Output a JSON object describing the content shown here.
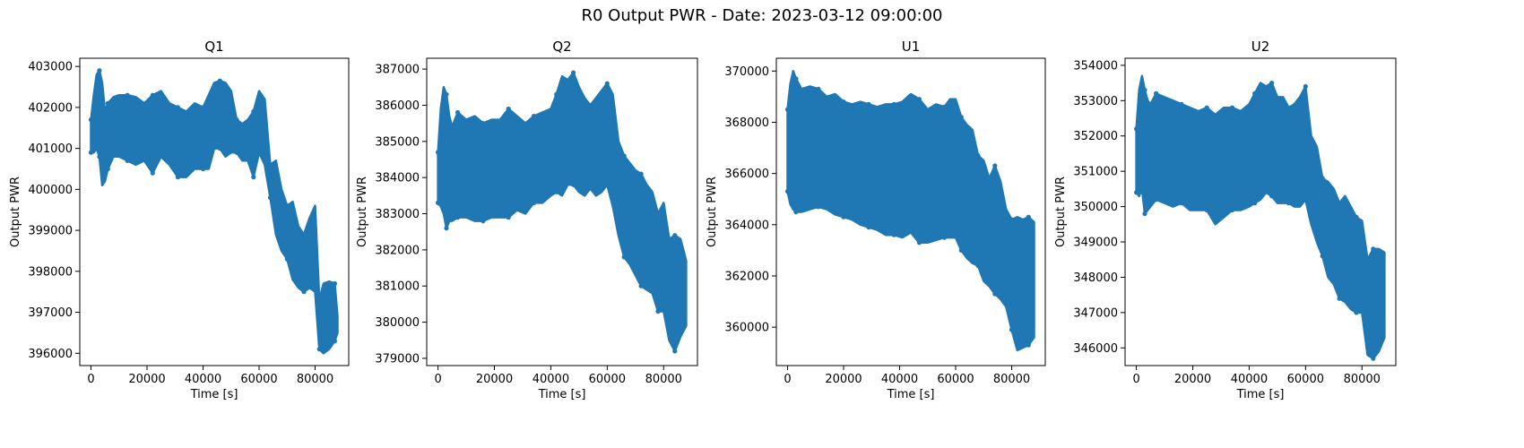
{
  "figure": {
    "suptitle": "R0 Output PWR - Date: 2023-03-12 09:00:00",
    "series_color": "#1f77b4"
  },
  "chart_data": [
    {
      "type": "scatter",
      "title": "Q1",
      "xlabel": "Time [s]",
      "ylabel": "Output PWR",
      "marker": "star",
      "xlim": [
        -4000,
        92000
      ],
      "ylim": [
        395700,
        403200
      ],
      "xticks": [
        0,
        20000,
        40000,
        60000,
        80000
      ],
      "yticks": [
        396000,
        397000,
        398000,
        399000,
        400000,
        401000,
        402000,
        403000
      ],
      "series": [
        {
          "x": [
            0,
            1000,
            2000,
            3000,
            4000,
            5000,
            6000,
            8000,
            10000,
            13000,
            16000,
            19000,
            22000,
            25000,
            28000,
            31000,
            34000,
            37000,
            40000,
            42000,
            44000,
            46000,
            48000,
            50000,
            52000,
            54000,
            56000,
            58000,
            60000,
            62000,
            64000,
            66000,
            68000,
            70000,
            72000,
            74000,
            76000,
            78000,
            80000,
            81500,
            83000,
            85000,
            87000,
            88000
          ],
          "upper": [
            401700,
            402300,
            402800,
            402900,
            402600,
            401900,
            402100,
            402250,
            402300,
            402300,
            402250,
            402100,
            402300,
            402400,
            402100,
            402000,
            401900,
            402100,
            402000,
            402300,
            402600,
            402650,
            402600,
            402400,
            401700,
            401600,
            401700,
            401900,
            402400,
            402200,
            400600,
            400700,
            400000,
            399600,
            399700,
            399100,
            398900,
            399300,
            399600,
            397300,
            397700,
            397750,
            397700,
            396900
          ],
          "lower": [
            400900,
            400900,
            401000,
            400800,
            400100,
            400200,
            400500,
            400800,
            400800,
            400700,
            400600,
            400700,
            400400,
            400800,
            400600,
            400300,
            400300,
            400500,
            400500,
            400500,
            401000,
            401000,
            400800,
            400900,
            400900,
            400700,
            400700,
            400300,
            400900,
            400600,
            399800,
            398900,
            398500,
            398300,
            397800,
            397600,
            397500,
            397600,
            397500,
            396100,
            396000,
            396100,
            396300,
            396500
          ]
        }
      ]
    },
    {
      "type": "scatter",
      "title": "Q2",
      "xlabel": "Time [s]",
      "ylabel": "Output PWR",
      "marker": "star",
      "xlim": [
        -4000,
        92000
      ],
      "ylim": [
        378800,
        387300
      ],
      "xticks": [
        0,
        20000,
        40000,
        60000,
        80000
      ],
      "yticks": [
        379000,
        380000,
        381000,
        382000,
        383000,
        384000,
        385000,
        386000,
        387000
      ],
      "series": [
        {
          "x": [
            0,
            1000,
            2000,
            3000,
            4000,
            5000,
            7000,
            10000,
            13000,
            16000,
            19000,
            22000,
            25000,
            28000,
            31000,
            34000,
            37000,
            40000,
            42000,
            44000,
            46000,
            48000,
            50000,
            52000,
            54000,
            56000,
            58000,
            60000,
            62000,
            64000,
            66000,
            68000,
            70000,
            72000,
            74000,
            76000,
            78000,
            80000,
            82000,
            84000,
            86000,
            88000
          ],
          "upper": [
            384700,
            385900,
            386500,
            386300,
            385700,
            385400,
            385800,
            385600,
            385700,
            385500,
            385600,
            385600,
            385900,
            385700,
            385500,
            385700,
            385800,
            385900,
            386300,
            386800,
            386700,
            386900,
            386500,
            386200,
            386000,
            386200,
            386400,
            386600,
            386300,
            385000,
            384600,
            384400,
            384200,
            384100,
            383800,
            383600,
            383000,
            383300,
            382300,
            382400,
            382300,
            381700
          ],
          "lower": [
            383300,
            383200,
            383000,
            382600,
            382800,
            382800,
            382900,
            382900,
            382800,
            382800,
            382900,
            382900,
            382900,
            383100,
            383000,
            383300,
            383300,
            383500,
            383600,
            383500,
            383800,
            383800,
            383600,
            383500,
            383700,
            383500,
            383600,
            383800,
            383200,
            382400,
            381800,
            381600,
            381300,
            381000,
            380900,
            380800,
            380300,
            380300,
            379500,
            379200,
            379600,
            379900
          ]
        }
      ]
    },
    {
      "type": "scatter",
      "title": "U1",
      "xlabel": "Time [s]",
      "ylabel": "Output PWR",
      "marker": "star",
      "xlim": [
        -4000,
        92000
      ],
      "ylim": [
        358500,
        370500
      ],
      "xticks": [
        0,
        20000,
        40000,
        60000,
        80000
      ],
      "yticks": [
        360000,
        362000,
        364000,
        366000,
        368000,
        370000
      ],
      "series": [
        {
          "x": [
            0,
            1000,
            2000,
            3000,
            5000,
            8000,
            11000,
            14000,
            17000,
            20000,
            23000,
            26000,
            29000,
            32000,
            35000,
            38000,
            41000,
            44000,
            47000,
            50000,
            53000,
            56000,
            58000,
            60000,
            62000,
            64000,
            66000,
            68000,
            70000,
            72000,
            74000,
            76000,
            78000,
            80000,
            82000,
            84000,
            86000,
            88000
          ],
          "upper": [
            368500,
            369500,
            370000,
            369700,
            369300,
            369400,
            369300,
            369000,
            369100,
            368800,
            368700,
            368800,
            368700,
            368600,
            368700,
            368700,
            368800,
            369100,
            368900,
            368500,
            368700,
            368600,
            368900,
            368900,
            368200,
            367900,
            367700,
            366700,
            366500,
            365800,
            366300,
            365700,
            364600,
            364200,
            364300,
            364200,
            364300,
            364100
          ],
          "lower": [
            365300,
            364800,
            364600,
            364500,
            364500,
            364600,
            364700,
            364600,
            364400,
            364300,
            364200,
            364000,
            363900,
            363800,
            363600,
            363600,
            363500,
            363700,
            363300,
            363300,
            363400,
            363500,
            363500,
            363500,
            363000,
            362700,
            362500,
            362400,
            361800,
            361600,
            361300,
            361100,
            360800,
            359900,
            359100,
            359200,
            359300,
            359600
          ]
        }
      ]
    },
    {
      "type": "scatter",
      "title": "U2",
      "xlabel": "Time [s]",
      "ylabel": "Output PWR",
      "marker": "star",
      "xlim": [
        -4000,
        92000
      ],
      "ylim": [
        345500,
        354200
      ],
      "xticks": [
        0,
        20000,
        40000,
        60000,
        80000
      ],
      "yticks": [
        346000,
        347000,
        348000,
        349000,
        350000,
        351000,
        352000,
        353000,
        354000
      ],
      "series": [
        {
          "x": [
            0,
            1000,
            2000,
            3000,
            4000,
            5000,
            7000,
            10000,
            13000,
            16000,
            19000,
            22000,
            25000,
            28000,
            31000,
            34000,
            37000,
            40000,
            42000,
            44000,
            46000,
            48000,
            50000,
            52000,
            54000,
            56000,
            58000,
            60000,
            62000,
            64000,
            66000,
            68000,
            70000,
            72000,
            74000,
            76000,
            78000,
            80000,
            82000,
            84000,
            86000,
            88000
          ],
          "upper": [
            352200,
            353300,
            353700,
            353300,
            353000,
            352900,
            353200,
            353100,
            353000,
            352900,
            352800,
            352700,
            352800,
            352600,
            352800,
            352800,
            352700,
            352900,
            353200,
            353500,
            353400,
            353500,
            353100,
            353100,
            352800,
            352900,
            353100,
            353400,
            352000,
            351700,
            350800,
            350700,
            350500,
            350100,
            350300,
            350000,
            349700,
            349600,
            348500,
            348800,
            348800,
            348700
          ],
          "lower": [
            350400,
            350300,
            350500,
            349800,
            349900,
            350000,
            350200,
            350100,
            350000,
            350100,
            349900,
            349900,
            349900,
            349500,
            349700,
            349900,
            349900,
            350000,
            350100,
            350200,
            350400,
            350300,
            350100,
            350100,
            350100,
            350000,
            350000,
            350200,
            349500,
            349000,
            348600,
            348000,
            347800,
            347400,
            347300,
            347100,
            347000,
            347000,
            345800,
            345700,
            345900,
            346300
          ]
        }
      ]
    }
  ]
}
